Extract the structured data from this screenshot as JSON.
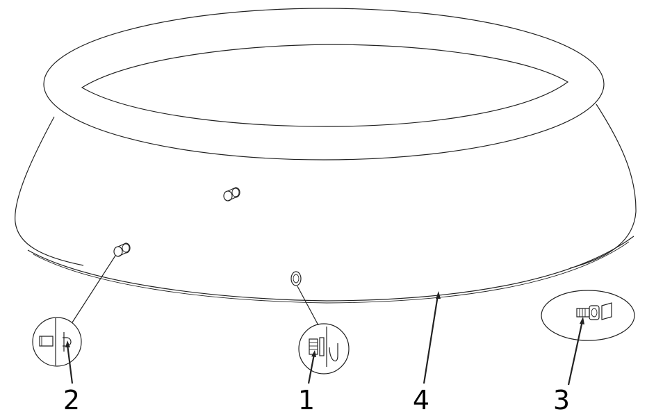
{
  "diagram": {
    "callouts": [
      {
        "id": "1",
        "label": "1",
        "part": "drain-valve"
      },
      {
        "id": "2",
        "label": "2",
        "part": "inlet-outlet-plug"
      },
      {
        "id": "3",
        "label": "3",
        "part": "hose-connector"
      },
      {
        "id": "4",
        "label": "4",
        "part": "pool-liner"
      }
    ]
  }
}
